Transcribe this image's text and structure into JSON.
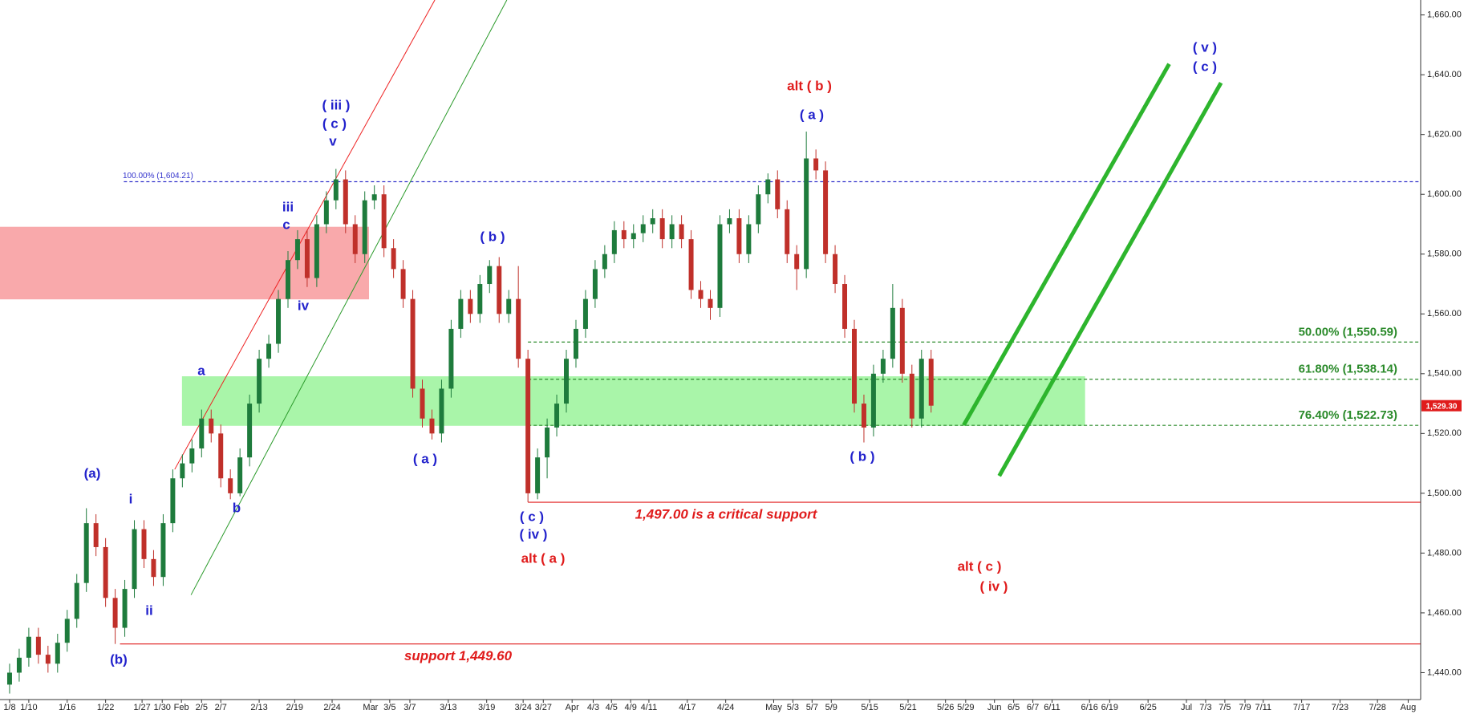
{
  "chart_data": {
    "type": "candlestick",
    "xlim": [
      -1,
      147
    ],
    "ylim": [
      1431,
      1665
    ],
    "yticks": [
      {
        "value": 1440,
        "label": "1,440.00"
      },
      {
        "value": 1460,
        "label": "1,460.00"
      },
      {
        "value": 1480,
        "label": "1,480.00"
      },
      {
        "value": 1500,
        "label": "1,500.00"
      },
      {
        "value": 1520,
        "label": "1,520.00"
      },
      {
        "value": 1540,
        "label": "1,540.00"
      },
      {
        "value": 1560,
        "label": "1,560.00"
      },
      {
        "value": 1580,
        "label": "1,580.00"
      },
      {
        "value": 1600,
        "label": "1,600.00"
      },
      {
        "value": 1620,
        "label": "1,620.00"
      },
      {
        "value": 1640,
        "label": "1,640.00"
      },
      {
        "value": 1660,
        "label": "1,660.00"
      }
    ],
    "xticks": [
      {
        "value": 0,
        "label": "1/8"
      },
      {
        "value": 2,
        "label": "1/10"
      },
      {
        "value": 6,
        "label": "1/16"
      },
      {
        "value": 10,
        "label": "1/22"
      },
      {
        "value": 13.8,
        "label": "1/27"
      },
      {
        "value": 15.9,
        "label": "1/30"
      },
      {
        "value": 17.9,
        "label": "Feb"
      },
      {
        "value": 20,
        "label": "2/5"
      },
      {
        "value": 22,
        "label": "2/7"
      },
      {
        "value": 26,
        "label": "2/13"
      },
      {
        "value": 29.7,
        "label": "2/19"
      },
      {
        "value": 33.6,
        "label": "2/24"
      },
      {
        "value": 37.6,
        "label": "Mar"
      },
      {
        "value": 39.6,
        "label": "3/5"
      },
      {
        "value": 41.7,
        "label": "3/7"
      },
      {
        "value": 45.7,
        "label": "3/13"
      },
      {
        "value": 49.7,
        "label": "3/19"
      },
      {
        "value": 53.5,
        "label": "3/24"
      },
      {
        "value": 55.6,
        "label": "3/27"
      },
      {
        "value": 58.6,
        "label": "Apr"
      },
      {
        "value": 60.8,
        "label": "4/3"
      },
      {
        "value": 62.7,
        "label": "4/5"
      },
      {
        "value": 64.7,
        "label": "4/9"
      },
      {
        "value": 66.6,
        "label": "4/11"
      },
      {
        "value": 70.6,
        "label": "4/17"
      },
      {
        "value": 74.6,
        "label": "4/24"
      },
      {
        "value": 79.6,
        "label": "May"
      },
      {
        "value": 81.6,
        "label": "5/3"
      },
      {
        "value": 83.6,
        "label": "5/7"
      },
      {
        "value": 85.6,
        "label": "5/9"
      },
      {
        "value": 89.6,
        "label": "5/15"
      },
      {
        "value": 93.6,
        "label": "5/21"
      },
      {
        "value": 97.5,
        "label": "5/26"
      },
      {
        "value": 99.6,
        "label": "5/29"
      },
      {
        "value": 102.6,
        "label": "Jun"
      },
      {
        "value": 104.6,
        "label": "6/5"
      },
      {
        "value": 106.6,
        "label": "6/7"
      },
      {
        "value": 108.6,
        "label": "6/11"
      },
      {
        "value": 112.5,
        "label": "6/16"
      },
      {
        "value": 114.6,
        "label": "6/19"
      },
      {
        "value": 118.6,
        "label": "6/25"
      },
      {
        "value": 122.6,
        "label": "Jul"
      },
      {
        "value": 124.6,
        "label": "7/3"
      },
      {
        "value": 126.6,
        "label": "7/5"
      },
      {
        "value": 128.7,
        "label": "7/9"
      },
      {
        "value": 130.6,
        "label": "7/11"
      },
      {
        "value": 134.6,
        "label": "7/17"
      },
      {
        "value": 138.6,
        "label": "7/23"
      },
      {
        "value": 142.5,
        "label": "7/28"
      },
      {
        "value": 145.7,
        "label": "Aug"
      }
    ],
    "up_color": "#1e7b3c",
    "down_color": "#c0302a",
    "candles": [
      [
        1436,
        1443,
        1433,
        1440
      ],
      [
        1440,
        1448,
        1437,
        1445
      ],
      [
        1445,
        1455,
        1442,
        1452
      ],
      [
        1452,
        1455,
        1443,
        1446
      ],
      [
        1446,
        1449,
        1440,
        1443
      ],
      [
        1443,
        1453,
        1440,
        1450
      ],
      [
        1450,
        1461,
        1447,
        1458
      ],
      [
        1458,
        1473,
        1455,
        1470
      ],
      [
        1470,
        1495,
        1467,
        1490
      ],
      [
        1490,
        1493,
        1479,
        1482
      ],
      [
        1482,
        1485,
        1462,
        1465
      ],
      [
        1465,
        1468,
        1449.6,
        1455
      ],
      [
        1455,
        1471,
        1452,
        1468
      ],
      [
        1468,
        1491,
        1465,
        1488
      ],
      [
        1488,
        1491,
        1475,
        1478
      ],
      [
        1478,
        1481,
        1469,
        1472
      ],
      [
        1472,
        1493,
        1469,
        1490
      ],
      [
        1490,
        1508,
        1487,
        1505
      ],
      [
        1505,
        1513,
        1502,
        1510
      ],
      [
        1510,
        1518,
        1507,
        1515
      ],
      [
        1515,
        1528,
        1512,
        1525
      ],
      [
        1525,
        1528,
        1517,
        1520
      ],
      [
        1520,
        1523,
        1502,
        1505
      ],
      [
        1505,
        1508,
        1498,
        1500
      ],
      [
        1500,
        1515,
        1499,
        1512
      ],
      [
        1512,
        1533,
        1509,
        1530
      ],
      [
        1530,
        1548,
        1527,
        1545
      ],
      [
        1545,
        1553,
        1542,
        1550
      ],
      [
        1550,
        1568,
        1547,
        1565
      ],
      [
        1565,
        1581,
        1562,
        1578
      ],
      [
        1578,
        1588,
        1575,
        1585
      ],
      [
        1585,
        1588,
        1569,
        1572
      ],
      [
        1572,
        1593,
        1569,
        1590
      ],
      [
        1590,
        1601,
        1587,
        1598
      ],
      [
        1598,
        1608.5,
        1595,
        1605
      ],
      [
        1605,
        1608,
        1587,
        1590
      ],
      [
        1590,
        1593,
        1577,
        1580
      ],
      [
        1580,
        1601,
        1577,
        1598
      ],
      [
        1598,
        1603,
        1595,
        1600
      ],
      [
        1600,
        1603,
        1579,
        1582
      ],
      [
        1582,
        1585,
        1572,
        1575
      ],
      [
        1575,
        1578,
        1562,
        1565
      ],
      [
        1565,
        1568,
        1532,
        1535
      ],
      [
        1535,
        1538,
        1522,
        1525
      ],
      [
        1525,
        1528,
        1518,
        1520
      ],
      [
        1520,
        1538,
        1517,
        1535
      ],
      [
        1535,
        1558,
        1532,
        1555
      ],
      [
        1555,
        1568,
        1552,
        1565
      ],
      [
        1565,
        1568,
        1557,
        1560
      ],
      [
        1560,
        1573,
        1557,
        1570
      ],
      [
        1570,
        1578,
        1567,
        1576
      ],
      [
        1576,
        1579,
        1557,
        1560
      ],
      [
        1560,
        1568,
        1557,
        1565
      ],
      [
        1565,
        1576,
        1542,
        1545
      ],
      [
        1545,
        1548,
        1497,
        1500
      ],
      [
        1500,
        1515,
        1498,
        1512
      ],
      [
        1512,
        1525,
        1505,
        1522
      ],
      [
        1522,
        1533,
        1519,
        1530
      ],
      [
        1530,
        1548,
        1527,
        1545
      ],
      [
        1545,
        1558,
        1542,
        1555
      ],
      [
        1555,
        1568,
        1552,
        1565
      ],
      [
        1565,
        1578,
        1562,
        1575
      ],
      [
        1575,
        1583,
        1572,
        1580
      ],
      [
        1580,
        1591,
        1577,
        1588
      ],
      [
        1588,
        1591,
        1582,
        1585
      ],
      [
        1585,
        1590,
        1582,
        1587
      ],
      [
        1587,
        1593,
        1584,
        1590
      ],
      [
        1590,
        1595,
        1587,
        1592
      ],
      [
        1592,
        1595,
        1582,
        1585
      ],
      [
        1585,
        1593,
        1582,
        1590
      ],
      [
        1590,
        1593,
        1582,
        1585
      ],
      [
        1585,
        1588,
        1565,
        1568
      ],
      [
        1568,
        1571,
        1562,
        1565
      ],
      [
        1565,
        1568,
        1558,
        1562
      ],
      [
        1562,
        1593,
        1559,
        1590
      ],
      [
        1590,
        1595,
        1587,
        1592
      ],
      [
        1592,
        1595,
        1577,
        1580
      ],
      [
        1580,
        1593,
        1577,
        1590
      ],
      [
        1590,
        1603,
        1587,
        1600
      ],
      [
        1600,
        1607,
        1597,
        1605
      ],
      [
        1605,
        1608,
        1592,
        1595
      ],
      [
        1595,
        1598,
        1577,
        1580
      ],
      [
        1580,
        1583,
        1568,
        1575
      ],
      [
        1575,
        1621,
        1572,
        1612
      ],
      [
        1612,
        1615,
        1605,
        1608
      ],
      [
        1608,
        1611,
        1577,
        1580
      ],
      [
        1580,
        1583,
        1567,
        1570
      ],
      [
        1570,
        1573,
        1552,
        1555
      ],
      [
        1555,
        1558,
        1527,
        1530
      ],
      [
        1530,
        1533,
        1517,
        1522
      ],
      [
        1522,
        1543,
        1519,
        1540
      ],
      [
        1540,
        1548,
        1537,
        1545
      ],
      [
        1545,
        1570,
        1542,
        1562
      ],
      [
        1562,
        1565,
        1537,
        1540
      ],
      [
        1540,
        1543,
        1522,
        1525
      ],
      [
        1525,
        1548,
        1522,
        1545
      ],
      [
        1545,
        1548,
        1527,
        1529.3
      ]
    ],
    "zones": [
      {
        "x": [
          -1,
          37.4
        ],
        "y": [
          1565,
          1589
        ],
        "color": "#f9a9ab"
      },
      {
        "x": [
          18,
          112
        ],
        "y": [
          1522.7,
          1539
        ],
        "color": "#a9f5a9"
      }
    ],
    "trendlines": [
      {
        "x": [
          17.2,
          44.3
        ],
        "y": [
          1508,
          1665
        ],
        "color": "#ee2222",
        "width": 1
      },
      {
        "x": [
          18.9,
          51.8
        ],
        "y": [
          1466,
          1665
        ],
        "color": "#2a9a2a",
        "width": 1
      },
      {
        "x": [
          99.4,
          120.8
        ],
        "y": [
          1522.8,
          1643.6
        ],
        "color": "#2db52d",
        "width": 5
      },
      {
        "x": [
          103.1,
          126.2
        ],
        "y": [
          1505.8,
          1637.3
        ],
        "color": "#2db52d",
        "width": 5
      }
    ],
    "levels": [
      {
        "value": 1604.21,
        "from": 11.9,
        "label": "100.00% (1,604.21)",
        "color": "#3333cc",
        "dashed": true
      },
      {
        "value": 1550.59,
        "from": 54,
        "label": "50.00% (1,550.59)",
        "color": "#2a8a2a",
        "dashed": true
      },
      {
        "value": 1538.14,
        "from": 54,
        "label": "61.80% (1,538.14)",
        "color": "#2a8a2a",
        "dashed": true
      },
      {
        "value": 1522.73,
        "from": 54,
        "label": "76.40% (1,522.73)",
        "color": "#2a8a2a",
        "dashed": true
      },
      {
        "value": 1497,
        "from": 54,
        "label": "1,497.00 is a critical support",
        "color": "#e01b1b",
        "dashed": false
      },
      {
        "value": 1449.6,
        "from": 11.5,
        "label": "support 1,449.60",
        "color": "#e01b1b",
        "dashed": false
      }
    ],
    "last_price": {
      "value": 1529.3,
      "label": "1,529.30",
      "color": "#e01b1b"
    },
    "annotations": [
      {
        "text": "(a)",
        "color": "#2222cc"
      },
      {
        "text": "i",
        "color": "#2222cc"
      },
      {
        "text": "ii",
        "color": "#2222cc"
      },
      {
        "text": "(b)",
        "color": "#2222cc"
      },
      {
        "text": "a",
        "color": "#2222cc"
      },
      {
        "text": "b",
        "color": "#2222cc"
      },
      {
        "text": "iii",
        "color": "#2222cc"
      },
      {
        "text": "c",
        "color": "#2222cc"
      },
      {
        "text": "iv",
        "color": "#2222cc"
      },
      {
        "text": "( iii )",
        "color": "#2222cc"
      },
      {
        "text": "( c )",
        "color": "#2222cc"
      },
      {
        "text": "v",
        "color": "#2222cc"
      },
      {
        "text": "( a )",
        "color": "#2222cc"
      },
      {
        "text": "( b )",
        "color": "#2222cc"
      },
      {
        "text": "( c )",
        "color": "#2222cc"
      },
      {
        "text": "( iv )",
        "color": "#2222cc"
      },
      {
        "text": "alt ( a )",
        "color": "#e01b1b"
      },
      {
        "text": "alt ( b )",
        "color": "#e01b1b"
      },
      {
        "text": "( a )",
        "color": "#2222cc"
      },
      {
        "text": "( b )",
        "color": "#2222cc"
      },
      {
        "text": "alt ( c )",
        "color": "#e01b1b"
      },
      {
        "text": "( iv )",
        "color": "#e01b1b"
      },
      {
        "text": "( v )",
        "color": "#2222cc"
      },
      {
        "text": "( c )",
        "color": "#2222cc"
      }
    ]
  }
}
